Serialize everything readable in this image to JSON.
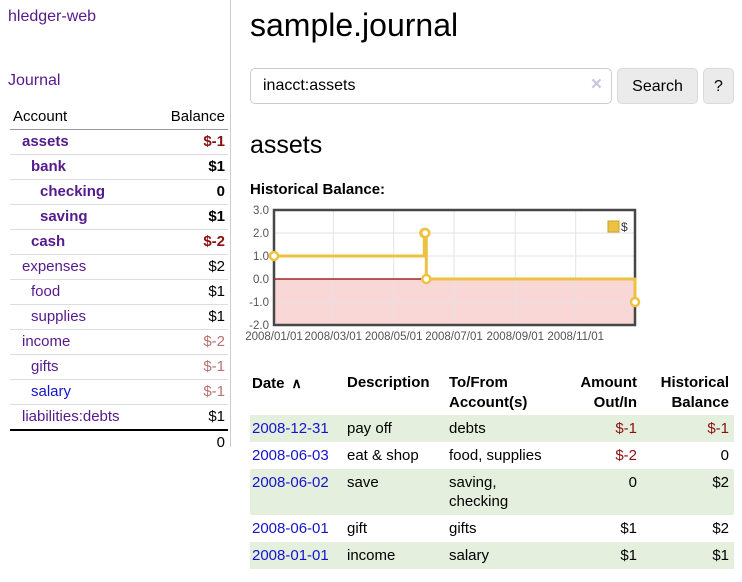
{
  "app": {
    "brand": "hledger-web",
    "nav_journal": "Journal"
  },
  "colors": {
    "accent_purple": "#551a8b",
    "link_blue": "#1414cc",
    "negative_strong": "#8b1010",
    "negative_muted": "#b97272",
    "stripe_green": "#e4efde",
    "chart_gold": "#edc240",
    "chart_negative_fill": "#f9d7d7",
    "chart_zero_line": "#8b0000"
  },
  "sidebar": {
    "columns": {
      "account": "Account",
      "balance": "Balance"
    },
    "accounts": [
      {
        "name": "assets",
        "depth": 1,
        "bold": true,
        "link_color": "purple",
        "balance": "$-1",
        "balance_color": "neg"
      },
      {
        "name": "bank",
        "depth": 2,
        "bold": true,
        "link_color": "purple",
        "balance": "$1",
        "balance_color": "pos"
      },
      {
        "name": "checking",
        "depth": 3,
        "bold": true,
        "link_color": "purple",
        "balance": "0",
        "balance_color": "pos"
      },
      {
        "name": "saving",
        "depth": 3,
        "bold": true,
        "link_color": "purple",
        "balance": "$1",
        "balance_color": "pos"
      },
      {
        "name": "cash",
        "depth": 2,
        "bold": true,
        "link_color": "purple",
        "balance": "$-2",
        "balance_color": "neg"
      },
      {
        "name": "expenses",
        "depth": 1,
        "bold": false,
        "link_color": "purple",
        "balance": "$2",
        "balance_color": "pos"
      },
      {
        "name": "food",
        "depth": 2,
        "bold": false,
        "link_color": "purple",
        "balance": "$1",
        "balance_color": "pos"
      },
      {
        "name": "supplies",
        "depth": 2,
        "bold": false,
        "link_color": "purple",
        "balance": "$1",
        "balance_color": "pos"
      },
      {
        "name": "income",
        "depth": 1,
        "bold": false,
        "link_color": "purple",
        "balance": "$-2",
        "balance_color": "negmuted"
      },
      {
        "name": "gifts",
        "depth": 2,
        "bold": false,
        "link_color": "purple",
        "balance": "$-1",
        "balance_color": "negmuted"
      },
      {
        "name": "salary",
        "depth": 2,
        "bold": false,
        "link_color": "blue",
        "balance": "$-1",
        "balance_color": "negmuted"
      },
      {
        "name": "liabilities:debts",
        "depth": 1,
        "bold": false,
        "link_color": "purple",
        "balance": "$1",
        "balance_color": "pos"
      }
    ],
    "total": "0"
  },
  "header": {
    "title": "sample.journal"
  },
  "search": {
    "value": "inacct:assets",
    "clear_icon": "×",
    "button": "Search",
    "help_button": "?"
  },
  "account_page": {
    "title": "assets",
    "chart_label": "Historical Balance:"
  },
  "chart_data": {
    "type": "line",
    "step": true,
    "title": "Historical Balance",
    "legend": {
      "position": "top-right",
      "label": "$"
    },
    "ylim": [
      -2.0,
      3.0
    ],
    "y_ticks": [
      {
        "label": "3.0",
        "value": 3.0
      },
      {
        "label": "2.0",
        "value": 2.0
      },
      {
        "label": "1.0",
        "value": 1.0
      },
      {
        "label": "0.0",
        "value": 0.0
      },
      {
        "label": "-1.0",
        "value": -1.0
      },
      {
        "label": "-2.0",
        "value": -2.0
      }
    ],
    "xrange": [
      "2008-01-01",
      "2008-12-31"
    ],
    "x_ticks": [
      {
        "label": "2008/01/01",
        "date": "2008-01-01"
      },
      {
        "label": "2008/03/01",
        "date": "2008-03-01"
      },
      {
        "label": "2008/05/01",
        "date": "2008-05-01"
      },
      {
        "label": "2008/07/01",
        "date": "2008-07-01"
      },
      {
        "label": "2008/09/01",
        "date": "2008-09-01"
      },
      {
        "label": "2008/11/01",
        "date": "2008-11-01"
      }
    ],
    "x_gridline_dates": [
      "2008-03-01",
      "2008-05-01",
      "2008-07-01",
      "2008-09-01",
      "2008-11-01"
    ],
    "series": [
      {
        "name": "$",
        "color": "#edc240",
        "points": [
          {
            "date": "2008-01-01",
            "value": 1
          },
          {
            "date": "2008-06-01",
            "value": 2
          },
          {
            "date": "2008-06-02",
            "value": 2
          },
          {
            "date": "2008-06-03",
            "value": 0
          },
          {
            "date": "2008-12-31",
            "value": -1
          }
        ]
      }
    ]
  },
  "register": {
    "headers": [
      {
        "label": "Date",
        "align": "left",
        "sort_icon": "∧"
      },
      {
        "label": "Description",
        "align": "left"
      },
      {
        "label": "To/From Account(s)",
        "align": "left"
      },
      {
        "label": "Amount Out/In",
        "align": "right"
      },
      {
        "label": "Historical Balance",
        "align": "right"
      }
    ],
    "rows": [
      {
        "date": "2008-12-31",
        "description": "pay off",
        "accounts": "debts",
        "amount": "$-1",
        "amount_color": "neg",
        "balance": "$-1",
        "balance_color": "neg"
      },
      {
        "date": "2008-06-03",
        "description": "eat & shop",
        "accounts": "food, supplies",
        "amount": "$-2",
        "amount_color": "neg",
        "balance": "0",
        "balance_color": "pos"
      },
      {
        "date": "2008-06-02",
        "description": "save",
        "accounts": "saving, checking",
        "amount": "0",
        "amount_color": "pos",
        "balance": "$2",
        "balance_color": "pos"
      },
      {
        "date": "2008-06-01",
        "description": "gift",
        "accounts": "gifts",
        "amount": "$1",
        "amount_color": "pos",
        "balance": "$2",
        "balance_color": "pos"
      },
      {
        "date": "2008-01-01",
        "description": "income",
        "accounts": "salary",
        "amount": "$1",
        "amount_color": "pos",
        "balance": "$1",
        "balance_color": "pos"
      }
    ]
  }
}
